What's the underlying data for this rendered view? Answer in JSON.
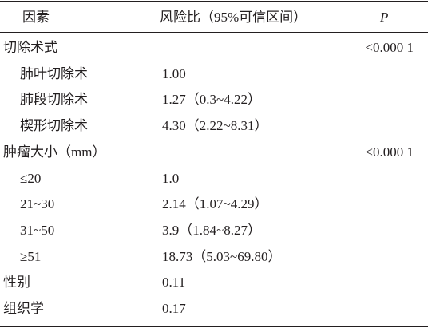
{
  "table": {
    "header": [
      "因素",
      "风险比（95%可信区间）",
      "P"
    ],
    "rows": [
      {
        "factor": "切除术式",
        "p": "<0.000 1",
        "items": [
          {
            "factor": "肺叶切除术",
            "hazard_ratio": "1.00"
          },
          {
            "factor": "肺段切除术",
            "hazard_ratio": "1.27（0.3~4.22）"
          },
          {
            "factor": "楔形切除术",
            "hazard_ratio": "4.30（2.22~8.31）"
          }
        ]
      },
      {
        "factor": "肿瘤大小（mm）",
        "p": "<0.000 1",
        "items": [
          {
            "factor": "≤20",
            "hazard_ratio": "1.0"
          },
          {
            "factor": "21~30",
            "hazard_ratio": "2.14（1.07~4.29）"
          },
          {
            "factor": "31~50",
            "hazard_ratio": "3.9（1.84~8.27）"
          },
          {
            "factor": "≥51",
            "hazard_ratio": "18.73（5.03~69.80）"
          }
        ]
      },
      {
        "factor": "性别",
        "hazard_ratio": "0.11"
      },
      {
        "factor": "组织学",
        "hazard_ratio": "0.17"
      }
    ]
  }
}
